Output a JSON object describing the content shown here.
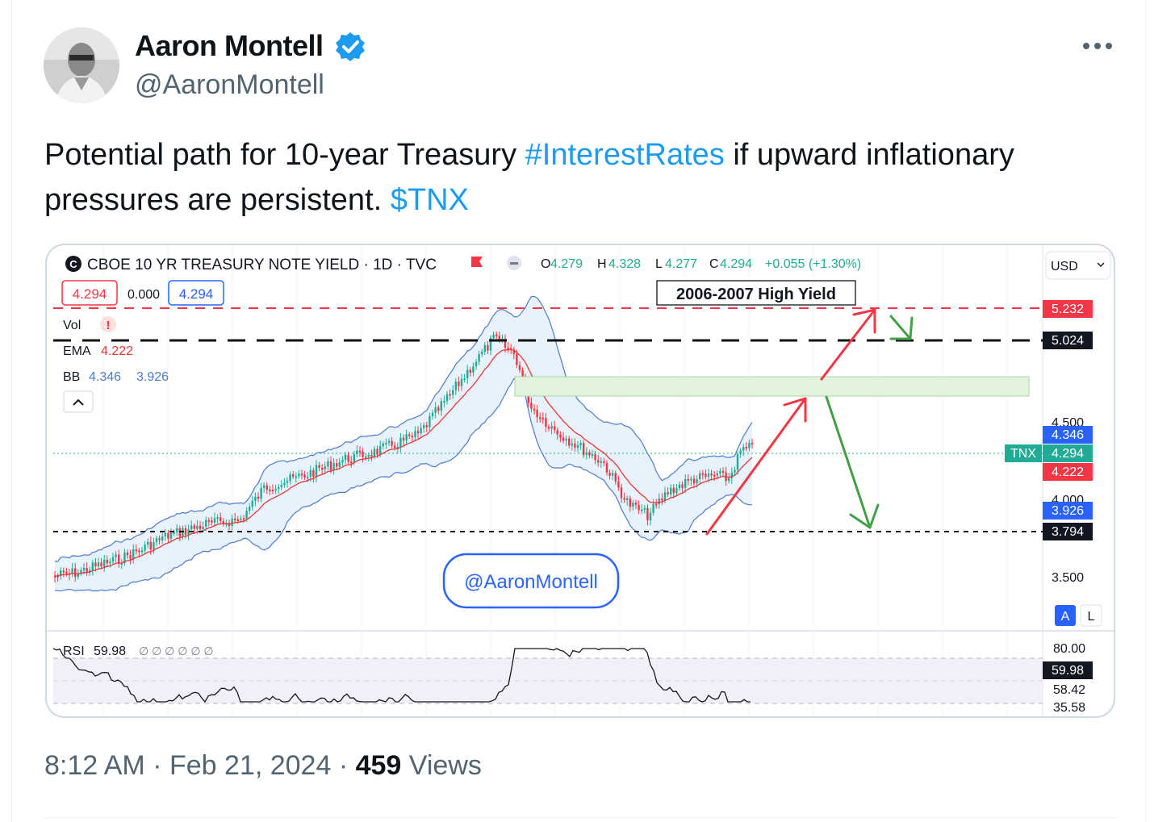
{
  "author": {
    "name": "Aaron Montell",
    "handle": "@AaronMontell"
  },
  "tweet": {
    "text_1": "Potential path for  10-year Treasury ",
    "hashtag": "#InterestRates",
    "text_2": " if upward inflationary pressures are persistent.  ",
    "cashtag": "$TNX"
  },
  "chart": {
    "title": "CBOE 10 YR TREASURY NOTE YIELD · 1D · TVC",
    "symbol_badge": "C",
    "ohlc": {
      "o_label": "O",
      "o": "4.279",
      "h_label": "H",
      "h": "4.328",
      "l_label": "L",
      "l": "4.277",
      "c_label": "C",
      "c": "4.294",
      "change": "+0.055 (+1.30%)"
    },
    "bid": "4.294",
    "spread": "0.000",
    "ask": "4.294",
    "currency": "USD",
    "vol_label": "Vol",
    "vol_warning": "!",
    "ema_label": "EMA",
    "ema_value": "4.222",
    "bb_label": "BB",
    "bb_upper": "4.346",
    "bb_lower": "3.926",
    "annotation": "2006-2007 High Yield",
    "watermark": "@AaronMontell",
    "ticker_tag": "TNX",
    "price_axis": {
      "label_5232": "5.232",
      "label_5024": "5.024",
      "tick_4500": "4.500",
      "label_4346": "4.346",
      "label_4294": "4.294",
      "label_4222": "4.222",
      "tick_4000": "4.000",
      "label_3926": "3.926",
      "label_3794": "3.794",
      "tick_3500": "3.500"
    },
    "scale_auto": "A",
    "scale_log": "L",
    "rsi": {
      "label": "RSI",
      "value": "59.98",
      "placeholders": "∅ ∅ ∅ ∅ ∅ ∅",
      "axis_80": "80.00",
      "axis_value": "59.98",
      "axis_5842": "58.42",
      "axis_3558": "35.58"
    },
    "colors": {
      "up": "#22ab94",
      "down": "#f23645",
      "bollinger": "#4c7bd0",
      "ema": "#e53935",
      "arrow_up": "#f23645",
      "arrow_down": "#43a047"
    }
  },
  "footer": {
    "time": "8:12 AM",
    "date": "Feb 21, 2024",
    "views_count": "459",
    "views_label": "Views"
  }
}
